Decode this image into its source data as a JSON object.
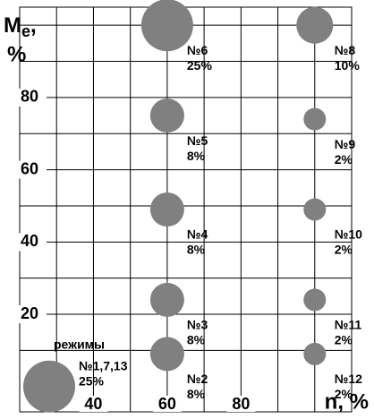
{
  "chart_data": {
    "type": "bubble",
    "x_label": "n, %",
    "y_label": {
      "symbol": "M",
      "subscript": "e",
      "suffix": ",",
      "unit": "%"
    },
    "annotation": "режимы",
    "xlim": [
      20,
      110
    ],
    "ylim": [
      -7,
      105
    ],
    "xticks": [
      40,
      60,
      80
    ],
    "yticks": [
      20,
      40,
      60,
      80
    ],
    "xgrid": [
      30,
      40,
      50,
      60,
      70,
      80,
      90,
      100
    ],
    "ygrid": [
      10,
      20,
      30,
      40,
      50,
      60,
      70,
      80,
      90,
      100
    ],
    "color": "#808080",
    "labels": [
      "№1,7,13",
      "№2",
      "№3",
      "№4",
      "№5",
      "№6",
      "№8",
      "№9",
      "№10",
      "№11",
      "№12"
    ],
    "x": [
      28,
      60,
      60,
      60,
      60,
      60,
      100,
      100,
      100,
      100,
      100
    ],
    "y": [
      0,
      9,
      24,
      49,
      75,
      100,
      100,
      74,
      49,
      24,
      9
    ],
    "sizes": [
      25,
      8,
      8,
      8,
      8,
      25,
      10,
      2,
      2,
      2,
      2
    ],
    "value_labels": [
      "25%",
      "8%",
      "8%",
      "8%",
      "8%",
      "25%",
      "10%",
      "2%",
      "2%",
      "2%",
      "2%"
    ]
  }
}
